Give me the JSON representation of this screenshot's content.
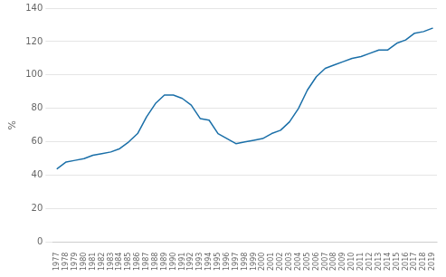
{
  "chart_data": {
    "type": "line",
    "x": [
      1977,
      1978,
      1979,
      1980,
      1981,
      1982,
      1983,
      1984,
      1985,
      1986,
      1987,
      1988,
      1989,
      1990,
      1991,
      1992,
      1993,
      1994,
      1995,
      1996,
      1997,
      1998,
      1999,
      2000,
      2001,
      2002,
      2003,
      2004,
      2005,
      2006,
      2007,
      2008,
      2009,
      2010,
      2011,
      2012,
      2013,
      2014,
      2015,
      2016,
      2017,
      2018,
      2019
    ],
    "values": [
      44,
      48,
      49,
      50,
      52,
      53,
      54,
      56,
      60,
      65,
      75,
      83,
      88,
      88,
      86,
      82,
      74,
      73,
      65,
      62,
      59,
      60,
      61,
      62,
      65,
      67,
      72,
      80,
      91,
      99,
      104,
      106,
      108,
      110,
      111,
      113,
      115,
      115,
      119,
      121,
      125,
      126,
      128
    ],
    "color": "#1a6fa8",
    "ylabel": "%",
    "xlim": [
      1976.5,
      2019.5
    ],
    "xticks": [
      1977,
      1978,
      1979,
      1980,
      1981,
      1982,
      1983,
      1984,
      1985,
      1986,
      1987,
      1988,
      1989,
      1990,
      1991,
      1992,
      1993,
      1994,
      1995,
      1996,
      1997,
      1998,
      1999,
      2000,
      2001,
      2002,
      2003,
      2004,
      2005,
      2006,
      2007,
      2008,
      2009,
      2010,
      2011,
      2012,
      2013,
      2014,
      2015,
      2016,
      2017,
      2018,
      2019
    ],
    "ylim": [
      0,
      140
    ],
    "yticks": [
      0,
      20,
      40,
      60,
      80,
      100,
      120,
      140
    ],
    "grid": true
  }
}
